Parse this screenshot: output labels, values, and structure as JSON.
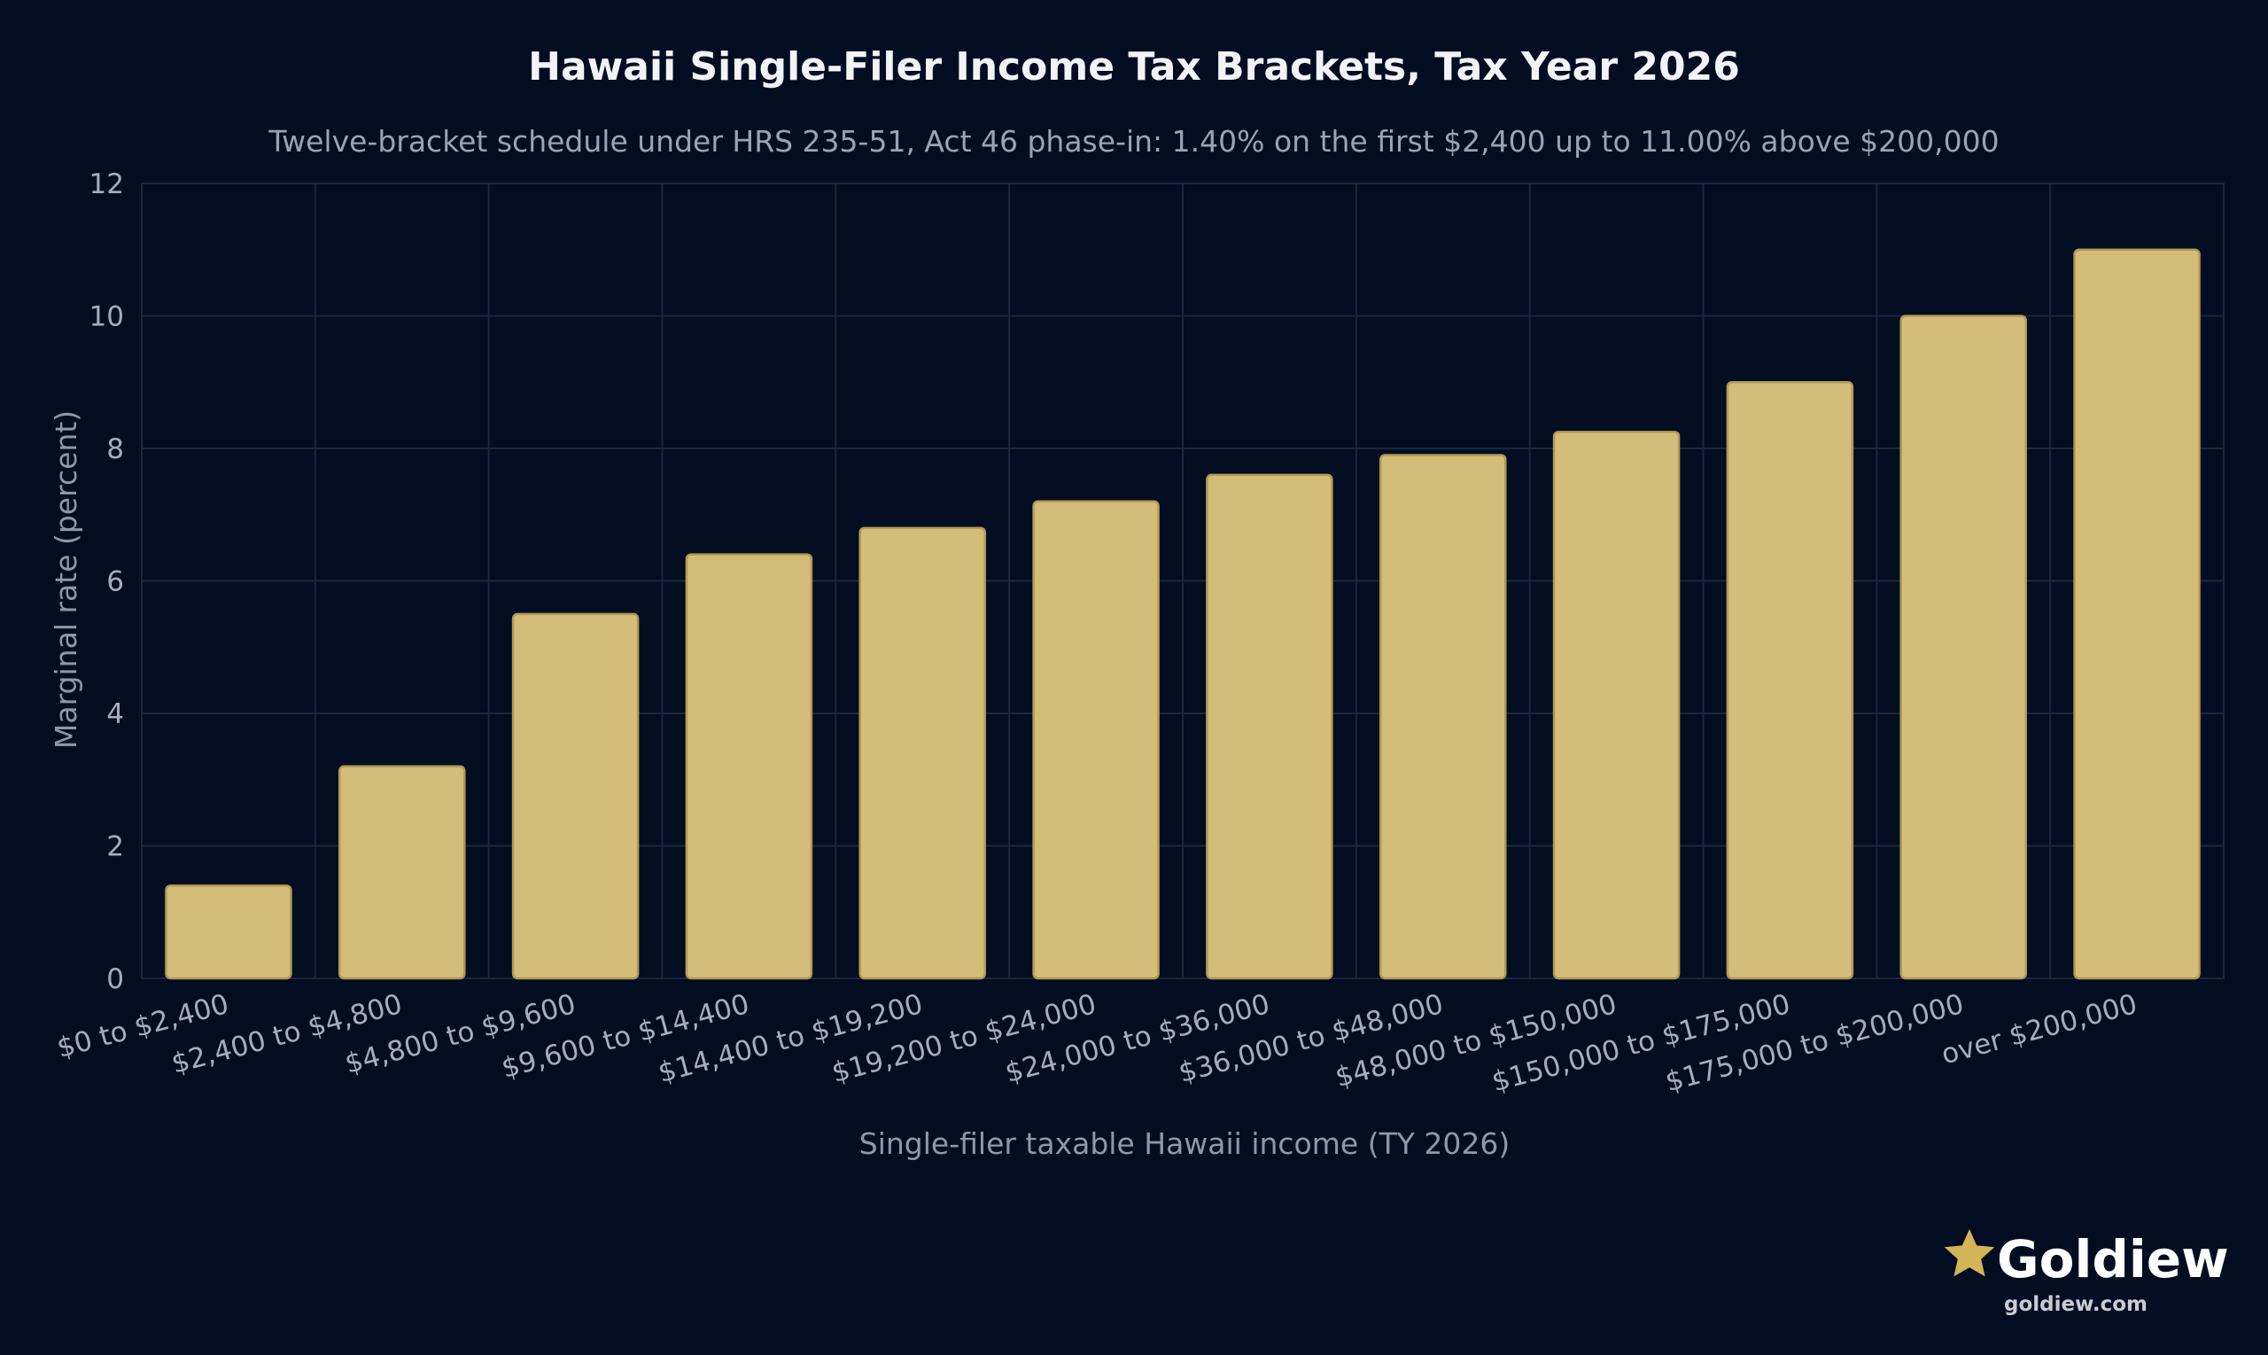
{
  "chart_data": {
    "type": "bar",
    "title": "Hawaii Single-Filer Income Tax Brackets, Tax Year 2026",
    "subtitle": "Twelve-bracket schedule under HRS 235-51, Act 46 phase-in: 1.40% on the first $2,400 up to 11.00% above $200,000",
    "xlabel": "Single-filer taxable Hawaii income (TY 2026)",
    "ylabel": "Marginal rate (percent)",
    "ylim": [
      0,
      12
    ],
    "yticks": [
      0,
      2,
      4,
      6,
      8,
      10,
      12
    ],
    "grid": true,
    "categories": [
      "$0 to $2,400",
      "$2,400 to $4,800",
      "$4,800 to $9,600",
      "$9,600 to $14,400",
      "$14,400 to $19,200",
      "$19,200 to $24,000",
      "$24,000 to $36,000",
      "$36,000 to $48,000",
      "$48,000 to $150,000",
      "$150,000 to $175,000",
      "$175,000 to $200,000",
      "over $200,000"
    ],
    "values": [
      1.4,
      3.2,
      5.5,
      6.4,
      6.8,
      7.2,
      7.6,
      7.9,
      8.25,
      9.0,
      10.0,
      11.0
    ],
    "bar_color": "#d4bd78",
    "bar_edge_color": "#b29a55",
    "background_color": "#020d22",
    "grid_color": "#1b2640"
  },
  "brand": {
    "name": "Goldiew",
    "url": "goldiew.com",
    "icon": "star-icon",
    "icon_color": "#d4b458"
  }
}
